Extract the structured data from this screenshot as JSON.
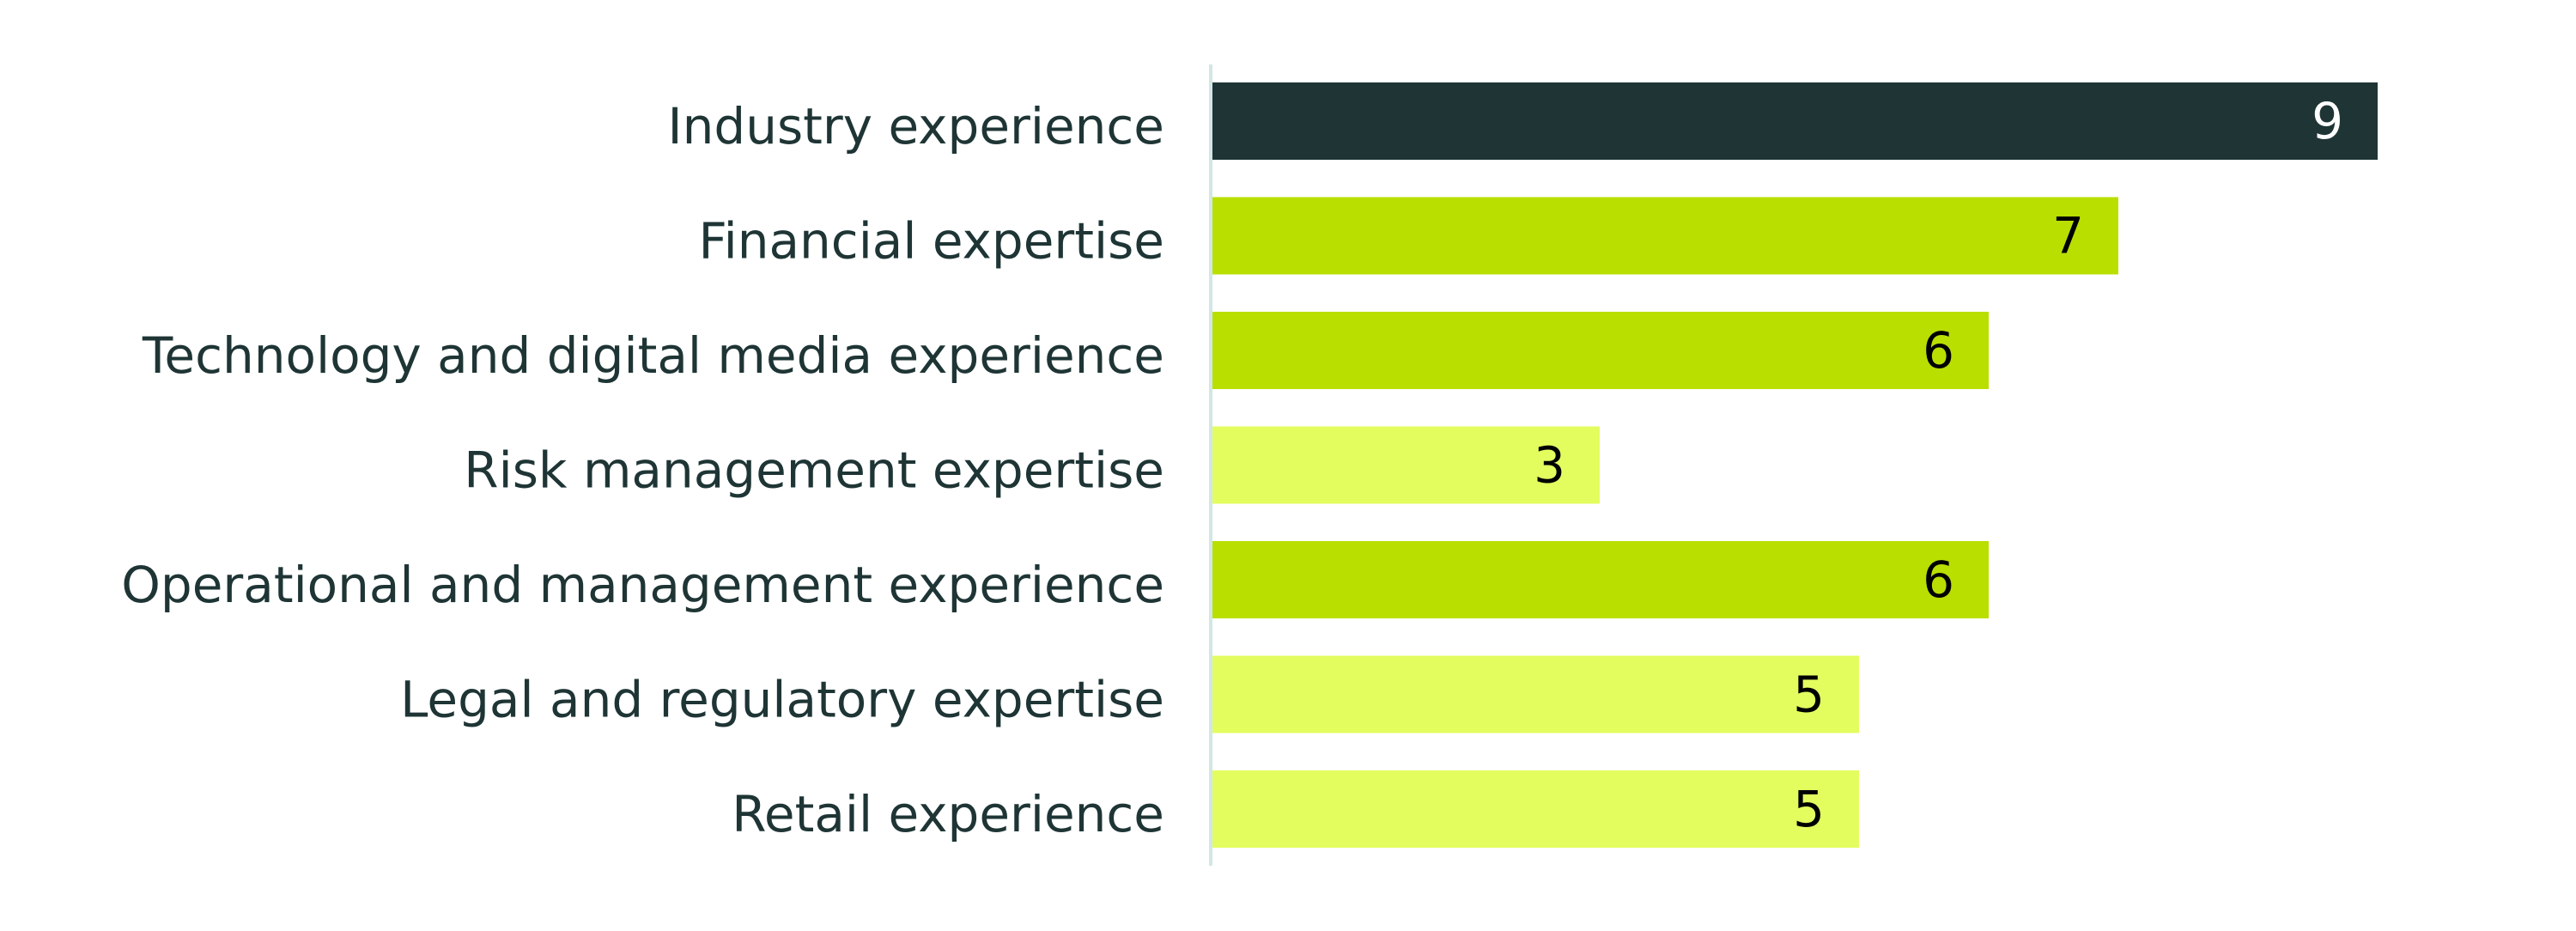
{
  "chart_data": {
    "type": "hbar",
    "categories": [
      "Industry experience",
      "Financial expertise",
      "Technology and digital media experience",
      "Risk management expertise",
      "Operational and management experience",
      "Legal and regulatory expertise",
      "Retail experience"
    ],
    "values": [
      9,
      7,
      6,
      3,
      6,
      5,
      5
    ],
    "colors": [
      "#1f3535",
      "#b8df00",
      "#b8df00",
      "#e3fd5f",
      "#b8df00",
      "#e3fd5f",
      "#e3fd5f"
    ]
  }
}
